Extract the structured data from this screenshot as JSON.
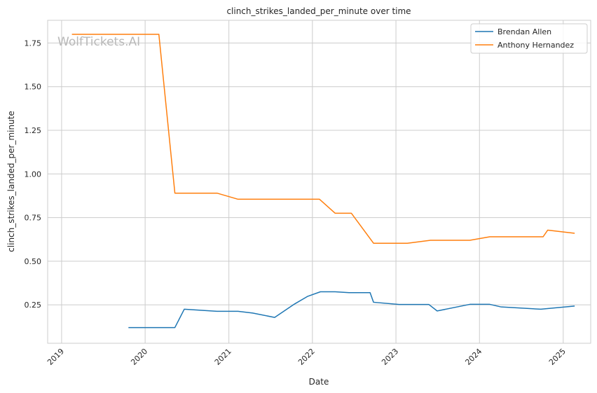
{
  "chart_data": {
    "type": "line",
    "title": "clinch_strikes_landed_per_minute over time",
    "xlabel": "Date",
    "ylabel": "clinch_strikes_landed_per_minute",
    "watermark": "WolfTickets.AI",
    "xlim": [
      "2018-11-01",
      "2025-05-01"
    ],
    "ylim": [
      0.03,
      1.88
    ],
    "x_ticks": [
      "2019",
      "2020",
      "2021",
      "2022",
      "2023",
      "2024",
      "2025"
    ],
    "y_ticks": [
      "0.25",
      "0.50",
      "0.75",
      "1.00",
      "1.25",
      "1.50",
      "1.75"
    ],
    "grid": true,
    "legend_position": "top-right",
    "series": [
      {
        "name": "Brendan Allen",
        "color": "#1f77b4",
        "points": [
          [
            "2019-10-20",
            0.12
          ],
          [
            "2020-05-10",
            0.12
          ],
          [
            "2020-06-20",
            0.225
          ],
          [
            "2020-11-10",
            0.213
          ],
          [
            "2021-02-10",
            0.213
          ],
          [
            "2021-04-15",
            0.203
          ],
          [
            "2021-07-20",
            0.178
          ],
          [
            "2021-10-15",
            0.255
          ],
          [
            "2021-12-10",
            0.298
          ],
          [
            "2022-02-05",
            0.325
          ],
          [
            "2022-04-10",
            0.325
          ],
          [
            "2022-06-10",
            0.32
          ],
          [
            "2022-09-10",
            0.32
          ],
          [
            "2022-09-25",
            0.265
          ],
          [
            "2023-01-15",
            0.252
          ],
          [
            "2023-05-25",
            0.252
          ],
          [
            "2023-06-30",
            0.215
          ],
          [
            "2023-11-20",
            0.253
          ],
          [
            "2024-02-15",
            0.253
          ],
          [
            "2024-04-05",
            0.238
          ],
          [
            "2024-09-25",
            0.225
          ],
          [
            "2025-02-20",
            0.243
          ]
        ]
      },
      {
        "name": "Anthony Hernandez",
        "color": "#ff7f0e",
        "points": [
          [
            "2019-02-15",
            1.8
          ],
          [
            "2020-03-01",
            1.8
          ],
          [
            "2020-05-10",
            0.89
          ],
          [
            "2020-11-10",
            0.89
          ],
          [
            "2021-02-10",
            0.855
          ],
          [
            "2022-02-01",
            0.855
          ],
          [
            "2022-04-10",
            0.775
          ],
          [
            "2022-06-20",
            0.775
          ],
          [
            "2022-09-25",
            0.603
          ],
          [
            "2023-02-20",
            0.603
          ],
          [
            "2023-06-01",
            0.62
          ],
          [
            "2023-11-20",
            0.62
          ],
          [
            "2024-02-15",
            0.64
          ],
          [
            "2024-10-05",
            0.64
          ],
          [
            "2024-10-25",
            0.678
          ],
          [
            "2025-02-20",
            0.66
          ]
        ]
      }
    ]
  }
}
